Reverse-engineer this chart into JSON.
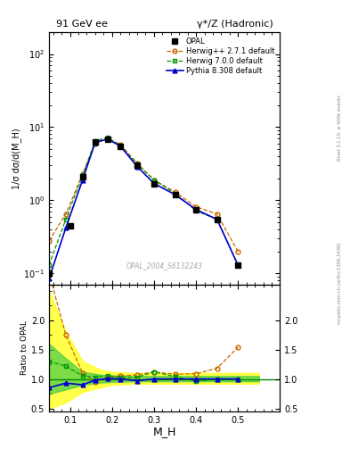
{
  "title_left": "91 GeV ee",
  "title_right": "γ*/Z (Hadronic)",
  "ylabel_main": "1/σ dσ/d(M_H)",
  "ylabel_ratio": "Ratio to OPAL",
  "xlabel": "M_H",
  "watermark": "OPAL_2004_S6132243",
  "right_label_top": "Rivet 3.1.10, ≥ 400k events",
  "right_label_bottom": "mcplots.cern.ch [arXiv:1306.3436]",
  "opal_x": [
    0.05,
    0.1,
    0.13,
    0.16,
    0.19,
    0.22,
    0.26,
    0.3,
    0.35,
    0.4,
    0.45,
    0.5
  ],
  "opal_y": [
    0.1,
    0.45,
    2.1,
    6.3,
    6.8,
    5.5,
    3.0,
    1.7,
    1.2,
    0.75,
    0.55,
    0.13
  ],
  "herwig271_x": [
    0.05,
    0.09,
    0.13,
    0.16,
    0.19,
    0.22,
    0.26,
    0.3,
    0.35,
    0.4,
    0.45,
    0.5
  ],
  "herwig271_y": [
    0.28,
    0.65,
    2.3,
    6.0,
    7.0,
    5.8,
    3.2,
    1.9,
    1.3,
    0.82,
    0.65,
    0.2
  ],
  "herwig271_color": "#cc6600",
  "herwig700_x": [
    0.05,
    0.09,
    0.13,
    0.16,
    0.19,
    0.22,
    0.26,
    0.3,
    0.35,
    0.4,
    0.45,
    0.5
  ],
  "herwig700_y": [
    0.13,
    0.55,
    2.2,
    6.5,
    7.2,
    5.6,
    3.1,
    1.9,
    1.25,
    0.72,
    0.55,
    0.13
  ],
  "herwig700_color": "#009900",
  "pythia_x": [
    0.05,
    0.09,
    0.13,
    0.16,
    0.19,
    0.22,
    0.26,
    0.3,
    0.35,
    0.4,
    0.45,
    0.5
  ],
  "pythia_y": [
    0.085,
    0.42,
    1.9,
    6.2,
    6.9,
    5.5,
    2.9,
    1.7,
    1.2,
    0.75,
    0.55,
    0.13
  ],
  "pythia_color": "#0000cc",
  "opal_color": "#000000",
  "ratio_herwig271_x": [
    0.05,
    0.09,
    0.13,
    0.16,
    0.19,
    0.22,
    0.26,
    0.3,
    0.35,
    0.4,
    0.45,
    0.5
  ],
  "ratio_herwig271_y": [
    2.8,
    1.75,
    1.1,
    0.95,
    1.03,
    1.05,
    1.07,
    1.12,
    1.08,
    1.09,
    1.18,
    1.54
  ],
  "ratio_herwig700_x": [
    0.05,
    0.09,
    0.13,
    0.16,
    0.19,
    0.22,
    0.26,
    0.3,
    0.35,
    0.4,
    0.45,
    0.5
  ],
  "ratio_herwig700_y": [
    1.3,
    1.22,
    1.05,
    1.03,
    1.06,
    1.02,
    1.03,
    1.12,
    1.04,
    0.96,
    1.0,
    1.0
  ],
  "ratio_pythia_x": [
    0.05,
    0.09,
    0.13,
    0.16,
    0.19,
    0.22,
    0.26,
    0.3,
    0.35,
    0.4,
    0.45,
    0.5
  ],
  "ratio_pythia_y": [
    0.85,
    0.93,
    0.9,
    0.98,
    1.01,
    1.0,
    0.97,
    1.0,
    1.0,
    1.0,
    1.0,
    1.0
  ],
  "band_yellow_x": [
    0.05,
    0.09,
    0.13,
    0.175,
    0.2,
    0.25,
    0.55
  ],
  "band_yellow_lo": [
    0.5,
    0.6,
    0.78,
    0.86,
    0.9,
    0.92,
    0.92
  ],
  "band_yellow_hi": [
    2.5,
    1.8,
    1.3,
    1.15,
    1.12,
    1.1,
    1.1
  ],
  "band_green_x": [
    0.05,
    0.09,
    0.13,
    0.175,
    0.2,
    0.25,
    0.55
  ],
  "band_green_lo": [
    0.75,
    0.82,
    0.9,
    0.94,
    0.95,
    0.96,
    0.96
  ],
  "band_green_hi": [
    1.6,
    1.35,
    1.12,
    1.07,
    1.06,
    1.05,
    1.05
  ],
  "xlim": [
    0.05,
    0.6
  ],
  "ylim_main": [
    0.07,
    200
  ],
  "ylim_ratio": [
    0.45,
    2.6
  ],
  "yticks_ratio": [
    0.5,
    1.0,
    1.5,
    2.0
  ]
}
